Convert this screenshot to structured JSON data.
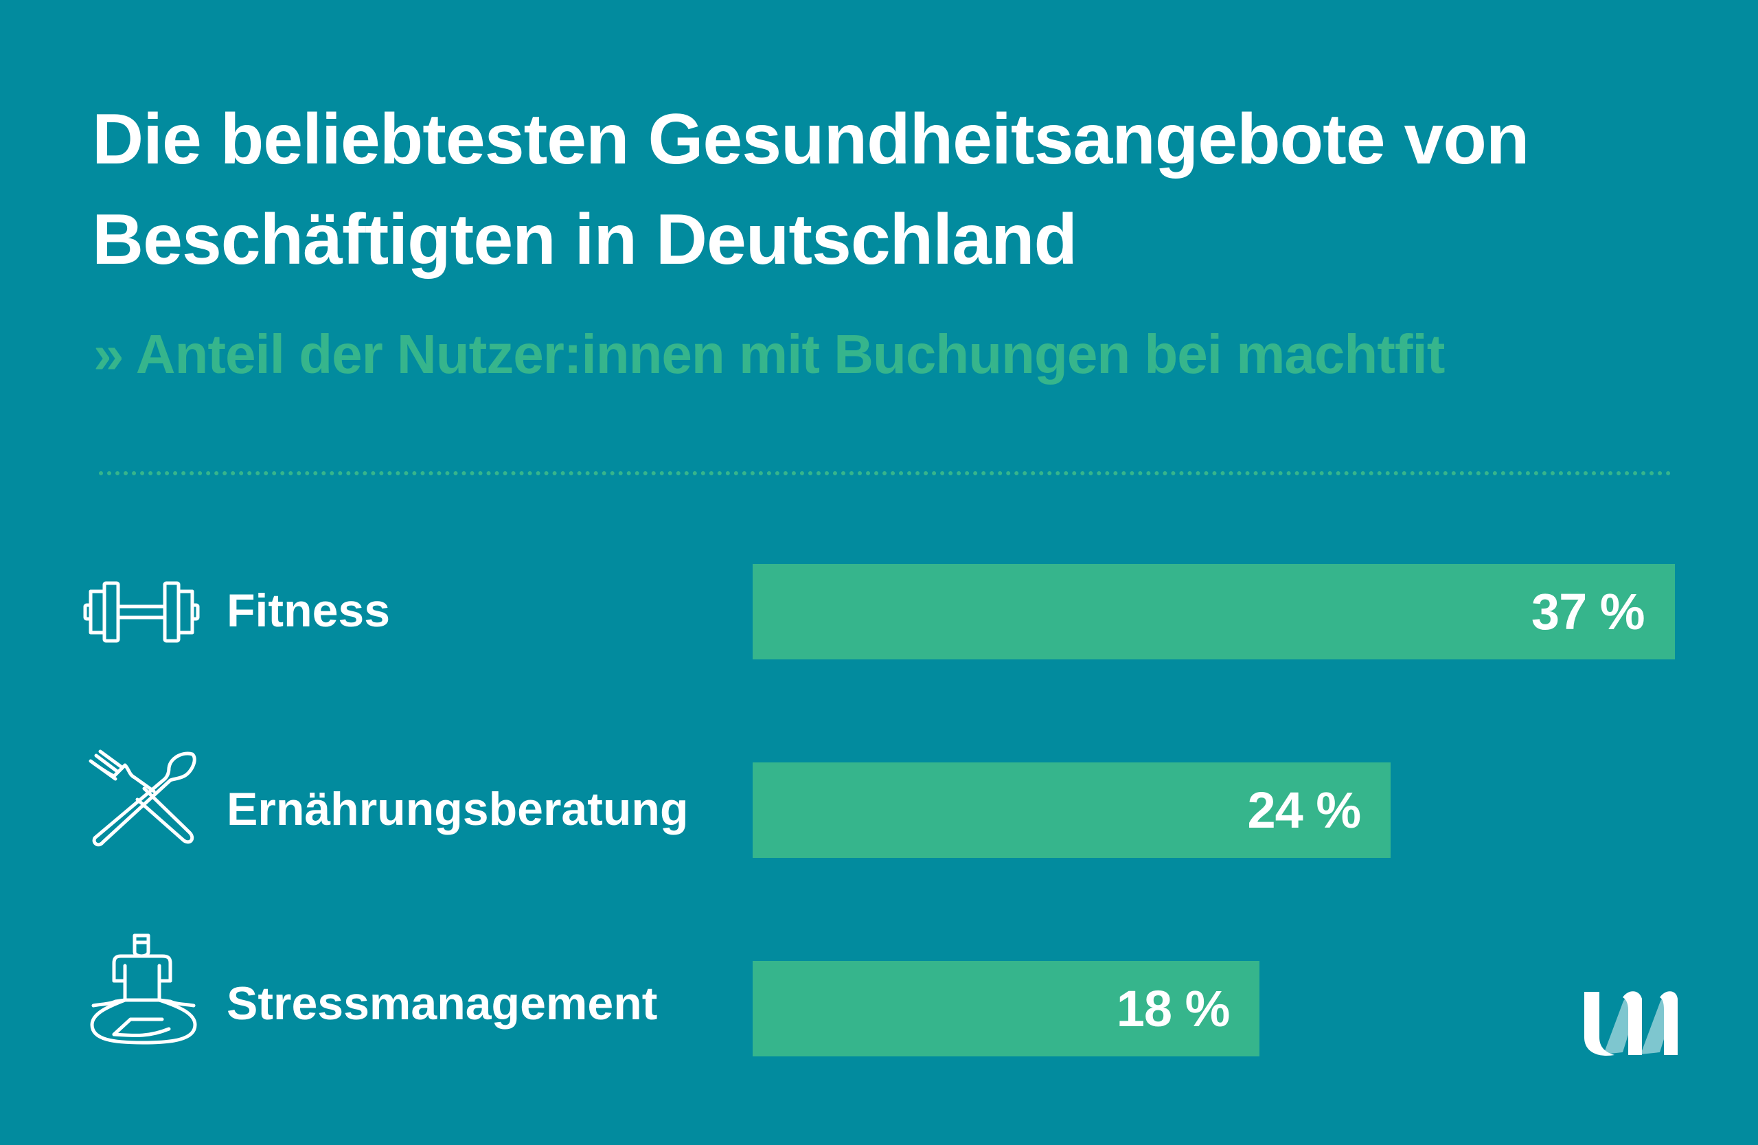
{
  "title_line1": "Die beliebtesten Gesundheitsangebote von",
  "title_line2": "Beschäftigten in Deutschland",
  "subtitle": "» Anteil der Nutzer:innen mit Buchungen bei machtfit",
  "colors": {
    "background": "#028b9e",
    "bar": "#36b58c",
    "accent": "#36b58c"
  },
  "chart_data": {
    "type": "bar",
    "orientation": "horizontal",
    "title": "Die beliebtesten Gesundheitsangebote von Beschäftigten in Deutschland",
    "subtitle": "» Anteil der Nutzer:innen mit Buchungen bei machtfit",
    "categories": [
      "Fitness",
      "Ernährungsberatung",
      "Stressmanagement"
    ],
    "values": [
      37,
      24,
      18
    ],
    "value_labels": [
      "37 %",
      "24 %",
      "18 %"
    ],
    "icons": [
      "dumbbell-icon",
      "fork-spoon-icon",
      "meditation-icon"
    ],
    "unit": "%"
  }
}
